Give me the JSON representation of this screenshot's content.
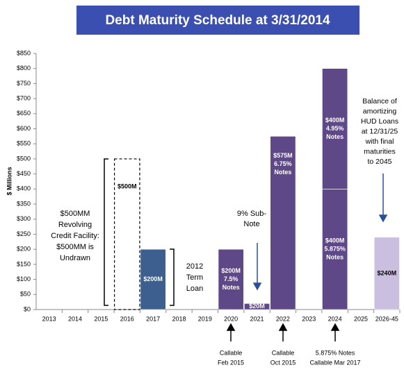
{
  "chart_data": {
    "type": "bar",
    "stacked": true,
    "title": "Debt Maturity Schedule at 3/31/2014",
    "y_label": "$ Millions",
    "categories": [
      "2013",
      "2014",
      "2015",
      "2016",
      "2017",
      "2018",
      "2019",
      "2020",
      "2021",
      "2022",
      "2023",
      "2024",
      "2025",
      "2026-45"
    ],
    "ylim": [
      0,
      850
    ],
    "yticks": [
      {
        "value": 0,
        "label": "$0"
      },
      {
        "value": 50,
        "label": "$50"
      },
      {
        "value": 100,
        "label": "$100"
      },
      {
        "value": 150,
        "label": "$150"
      },
      {
        "value": 200,
        "label": "$200"
      },
      {
        "value": 250,
        "label": "$250"
      },
      {
        "value": 300,
        "label": "$300"
      },
      {
        "value": 350,
        "label": "$350"
      },
      {
        "value": 400,
        "label": "$400"
      },
      {
        "value": 450,
        "label": "$450"
      },
      {
        "value": 500,
        "label": "$500"
      },
      {
        "value": 550,
        "label": "$550"
      },
      {
        "value": 600,
        "label": "$600"
      },
      {
        "value": 650,
        "label": "$650"
      },
      {
        "value": 700,
        "label": "$700"
      },
      {
        "value": 750,
        "label": "$750"
      },
      {
        "value": 800,
        "label": "$800"
      },
      {
        "value": 850,
        "label": "$850"
      }
    ],
    "series": [
      {
        "color": "#000000",
        "dashed": true,
        "label_color": "#000000",
        "values": [
          null,
          null,
          null,
          500,
          null,
          null,
          null,
          null,
          null,
          null,
          null,
          null,
          null,
          null
        ],
        "value_labels": [
          null,
          null,
          null,
          [
            "$500M"
          ],
          null,
          null,
          null,
          null,
          null,
          null,
          null,
          null,
          null,
          null
        ]
      },
      {
        "color": "#3d5f8f",
        "label_color": "#ffffff",
        "values": [
          null,
          null,
          null,
          null,
          200,
          null,
          null,
          null,
          null,
          null,
          null,
          null,
          null,
          null
        ],
        "value_labels": [
          null,
          null,
          null,
          null,
          [
            "$200M"
          ],
          null,
          null,
          null,
          null,
          null,
          null,
          null,
          null,
          null
        ]
      },
      {
        "color": "#5e4888",
        "label_color": "#ffffff",
        "values": [
          null,
          null,
          null,
          null,
          null,
          null,
          null,
          200,
          20,
          575,
          null,
          400,
          null,
          null
        ],
        "value_labels": [
          null,
          null,
          null,
          null,
          null,
          null,
          null,
          [
            "$200M",
            "7.5%",
            "Notes"
          ],
          [
            "$20M"
          ],
          [
            "$575M",
            "6.75%",
            "Notes"
          ],
          null,
          [
            "$400M",
            "5.875%",
            "Notes"
          ],
          null,
          null
        ]
      },
      {
        "color": "#5e4888",
        "label_color": "#ffffff",
        "values": [
          null,
          null,
          null,
          null,
          null,
          null,
          null,
          null,
          null,
          null,
          null,
          400,
          null,
          null
        ],
        "value_labels": [
          null,
          null,
          null,
          null,
          null,
          null,
          null,
          null,
          null,
          null,
          null,
          [
            "$400M",
            "4.95%",
            "Notes"
          ],
          null,
          null
        ]
      },
      {
        "color": "#cbbfe0",
        "label_color": "#000000",
        "values": [
          null,
          null,
          null,
          null,
          null,
          null,
          null,
          null,
          null,
          null,
          null,
          null,
          null,
          240
        ],
        "value_labels": [
          null,
          null,
          null,
          null,
          null,
          null,
          null,
          null,
          null,
          null,
          null,
          null,
          null,
          [
            "$240M"
          ]
        ]
      }
    ],
    "annotations": [
      [
        "$500MM",
        "Revolving",
        "Credit Facility:",
        "$500MM is",
        "Undrawn"
      ],
      [
        "2012",
        "Term",
        "Loan"
      ],
      [
        "9% Sub-",
        "Note"
      ],
      [
        "Balance of",
        "amortizing",
        "HUD Loans",
        "at 12/31/25",
        "with final",
        "maturities",
        "to 2045"
      ],
      [
        "Callable",
        "Feb 2015"
      ],
      [
        "Callable",
        "Oct 2015"
      ],
      [
        "5.875% Notes",
        "Callable Mar 2017"
      ]
    ]
  }
}
